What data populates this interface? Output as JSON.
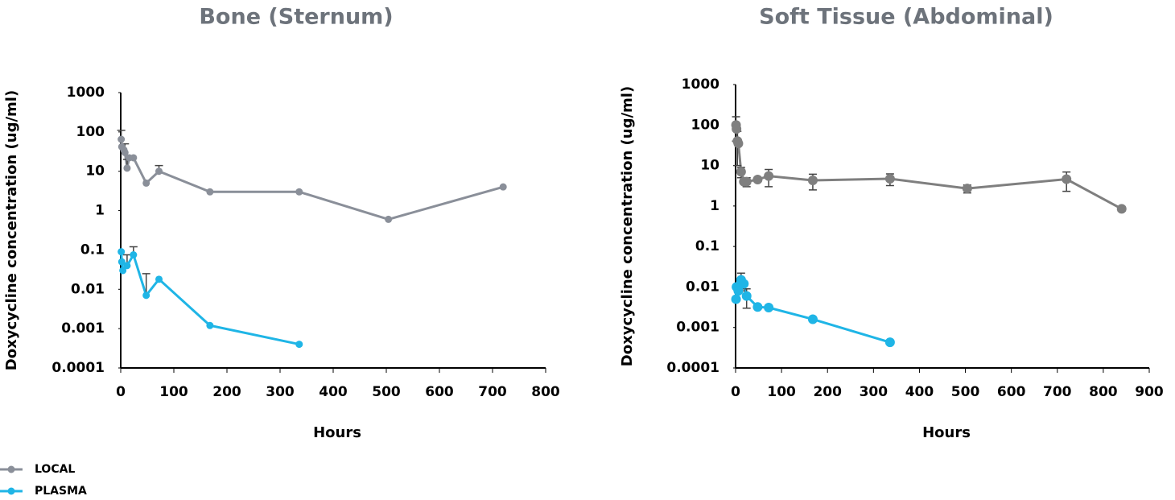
{
  "chart_data": [
    {
      "type": "line",
      "title": "Bone (Sternum)",
      "x_label": "Hours",
      "y_label": "Doxycycline concentration (ug/ml)",
      "log_y": true,
      "error_bars": "upper",
      "xlim": [
        0,
        800
      ],
      "xticks": [
        0,
        100,
        200,
        300,
        400,
        500,
        600,
        700,
        800
      ],
      "ylim": [
        0.0001,
        1000
      ],
      "yticks": [
        0.0001,
        0.001,
        0.01,
        0.1,
        1,
        10,
        100,
        1000
      ],
      "series": [
        {
          "name": "LOCAL",
          "color": "#8a8f99",
          "x": [
            1,
            2,
            6,
            8,
            12,
            16,
            24,
            48,
            72,
            168,
            336,
            504,
            720
          ],
          "values": [
            65,
            42,
            35,
            30,
            12,
            22,
            22,
            5,
            10,
            3,
            3,
            0.6,
            4
          ],
          "errors": [
            45,
            null,
            null,
            20,
            8,
            null,
            null,
            null,
            4,
            null,
            null,
            null,
            null
          ]
        },
        {
          "name": "PLASMA",
          "color": "#1fb5e6",
          "x": [
            1,
            2,
            4,
            12,
            24,
            48,
            72,
            168,
            336
          ],
          "values": [
            0.09,
            0.05,
            0.03,
            0.04,
            0.075,
            0.007,
            0.018,
            0.0012,
            0.0004
          ],
          "errors": [
            null,
            null,
            null,
            0.035,
            0.045,
            0.018,
            null,
            null,
            null
          ]
        }
      ]
    },
    {
      "type": "line",
      "title": "Soft Tissue (Abdominal)",
      "x_label": "Hours",
      "y_label": "Doxycycline concentration (ug/ml)",
      "log_y": true,
      "error_bars": "both",
      "xlim": [
        0,
        900
      ],
      "xticks": [
        0,
        100,
        200,
        300,
        400,
        500,
        600,
        700,
        800,
        900
      ],
      "ylim": [
        0.0001,
        1000
      ],
      "yticks": [
        0.0001,
        0.001,
        0.01,
        0.1,
        1,
        10,
        100,
        1000
      ],
      "series": [
        {
          "color": "#7f7f7f",
          "x": [
            1,
            2,
            4,
            6,
            12,
            18,
            24,
            48,
            72,
            168,
            336,
            504,
            720,
            840
          ],
          "values": [
            100,
            80,
            40,
            35,
            7,
            4,
            4,
            4.5,
            5.5,
            4.3,
            4.7,
            2.7,
            4.6,
            0.85
          ],
          "errors": [
            60,
            null,
            30,
            null,
            2,
            null,
            1,
            null,
            2.5,
            1.8,
            1.5,
            0.6,
            2.3,
            0.1
          ]
        },
        {
          "color": "#1fb5e6",
          "x": [
            1,
            2,
            6,
            12,
            18,
            24,
            48,
            72,
            168,
            336
          ],
          "values": [
            0.005,
            0.01,
            0.008,
            0.015,
            0.012,
            0.006,
            0.0032,
            0.0031,
            0.0016,
            0.00043
          ],
          "errors": [
            null,
            null,
            null,
            0.007,
            null,
            0.003,
            null,
            null,
            null,
            null
          ]
        }
      ]
    }
  ]
}
